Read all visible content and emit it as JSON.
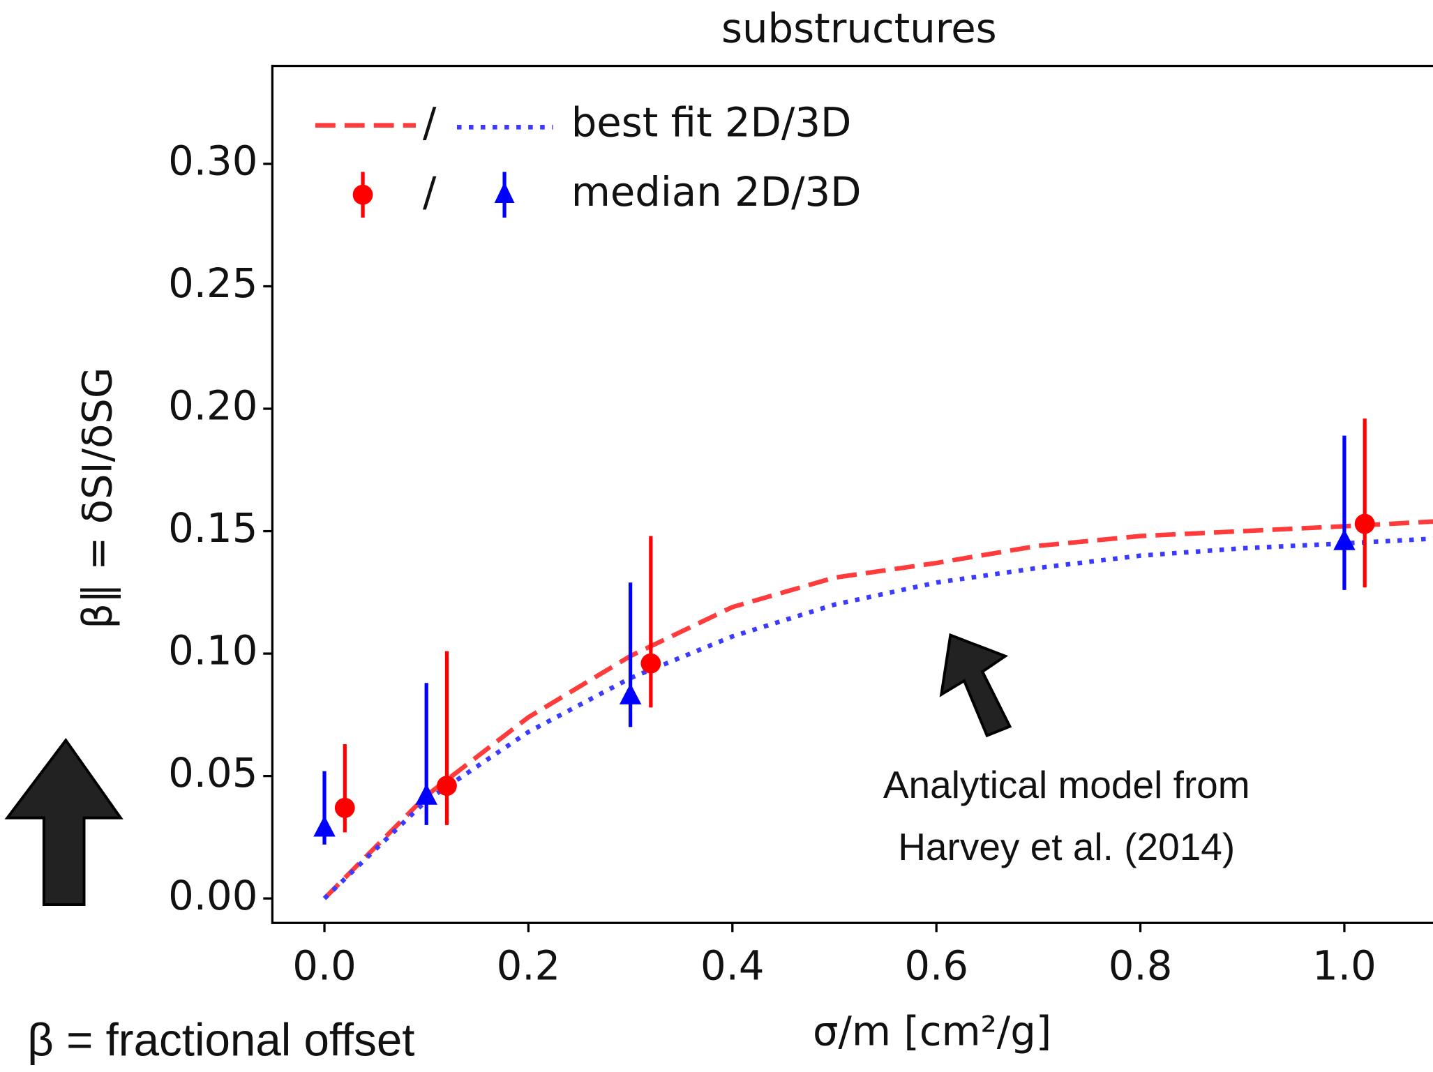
{
  "chart_data": {
    "type": "errorbar-fit",
    "title": "substructures",
    "xlabel": "σ/m [cm²/g]",
    "ylabel": "β‖ = δSI/δSG",
    "xlim": [
      -0.05,
      1.09
    ],
    "ylim": [
      -0.01,
      0.34
    ],
    "xticks": [
      {
        "value": 0,
        "label": "0.0"
      },
      {
        "value": 0.2,
        "label": "0.2"
      },
      {
        "value": 0.4,
        "label": "0.4"
      },
      {
        "value": 0.6,
        "label": "0.6"
      },
      {
        "value": 0.8,
        "label": "0.8"
      },
      {
        "value": 1,
        "label": "1.0"
      }
    ],
    "yticks": [
      {
        "value": 0,
        "label": "0.00"
      },
      0.05,
      {
        "value": 0.1,
        "label": "0.10"
      },
      0.15,
      {
        "value": 0.2,
        "label": "0.20"
      },
      0.25,
      {
        "value": 0.3,
        "label": "0.30"
      }
    ],
    "series": [
      {
        "kind": "fit",
        "dash": "dashed",
        "color": "#ff3b3b",
        "x": [
          0,
          0.1,
          0.2,
          0.3,
          0.4,
          0.5,
          0.6,
          0.7,
          0.8,
          0.9,
          1.0,
          1.09
        ],
        "values": [
          0,
          0.042,
          0.074,
          0.099,
          0.119,
          0.131,
          0.137,
          0.144,
          0.148,
          0.15,
          0.152,
          0.154
        ]
      },
      {
        "kind": "fit",
        "dash": "dotted",
        "color": "#3b3bff",
        "x": [
          0,
          0.1,
          0.2,
          0.3,
          0.4,
          0.5,
          0.6,
          0.7,
          0.8,
          0.9,
          1.0,
          1.09
        ],
        "values": [
          0,
          0.04,
          0.068,
          0.09,
          0.107,
          0.12,
          0.129,
          0.135,
          0.14,
          0.143,
          0.145,
          0.147
        ]
      },
      {
        "kind": "median",
        "marker": "circle",
        "color": "#ff0000",
        "x": [
          0.02,
          0.12,
          0.32,
          1.02
        ],
        "values": [
          0.037,
          0.046,
          0.096,
          0.153
        ],
        "lower": [
          0.027,
          0.03,
          0.078,
          0.127
        ],
        "upper": [
          0.063,
          0.101,
          0.148,
          0.196
        ]
      },
      {
        "kind": "median",
        "marker": "triangle",
        "color": "#0000ff",
        "x": [
          0,
          0.1,
          0.3,
          1.0
        ],
        "values": [
          0.029,
          0.042,
          0.083,
          0.146
        ],
        "lower": [
          0.022,
          0.03,
          0.07,
          0.126
        ],
        "upper": [
          0.052,
          0.088,
          0.129,
          0.189
        ]
      }
    ],
    "legend": [
      {
        "separator": "/",
        "label": "best fit 2D/3D"
      },
      {
        "separator": "/",
        "label": "median 2D/3D"
      }
    ],
    "annotations": [
      "Analytical model from",
      "Harvey et al. (2014)",
      "β = fractional offset"
    ]
  }
}
